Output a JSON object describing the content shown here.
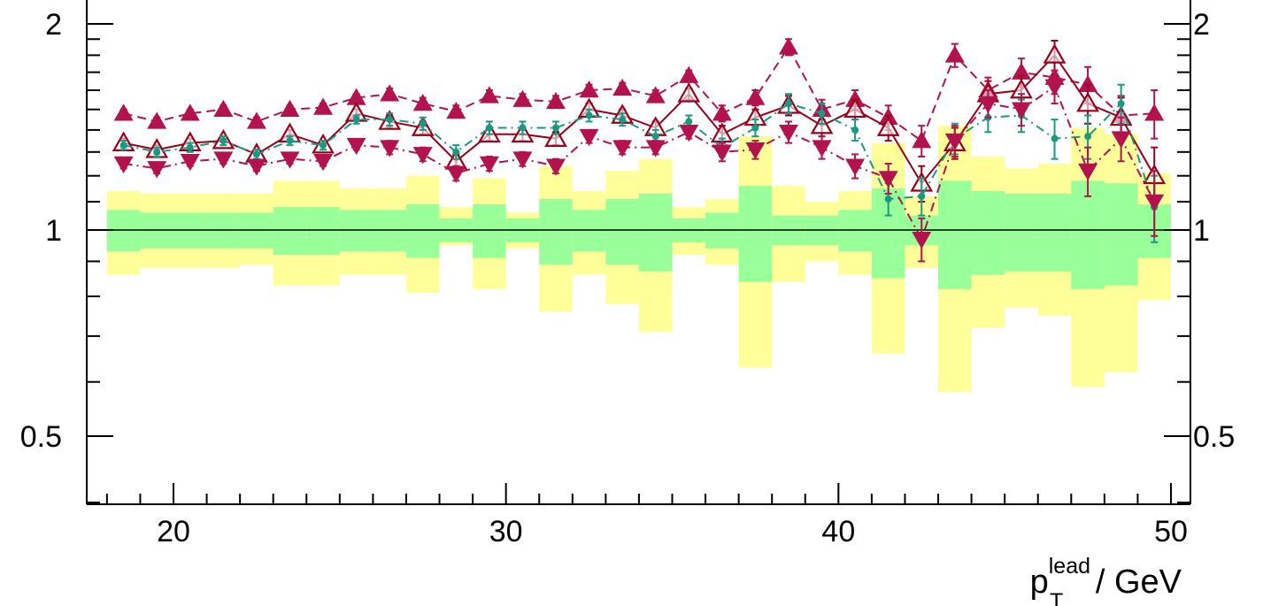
{
  "chart_data": {
    "type": "line",
    "xlabel": {
      "main": "p",
      "sup": "lead",
      "sub": "T",
      "unit": " / GeV"
    },
    "x_ticks": [
      20,
      30,
      40,
      50
    ],
    "x_tick_labels": [
      "20",
      "30",
      "40",
      "50"
    ],
    "y_ticks": [
      0.5,
      1,
      2
    ],
    "y_tick_labels": [
      "0.5",
      "1",
      "2"
    ],
    "xlim": [
      17.5,
      50.6
    ],
    "ylim": [
      0.35,
      2.3
    ],
    "y_scale": "log",
    "reference_line": 1,
    "colors": {
      "green_band": "#99ff99",
      "yellow_band": "#ffff99",
      "dark_red": "#99001a",
      "magenta": "#b3134d",
      "teal": "#1a9980",
      "reference": "#000000"
    },
    "bins": [
      {
        "lo": 18,
        "hi": 19,
        "inner": [
          0.93,
          1.07
        ],
        "outer": [
          0.86,
          1.14
        ]
      },
      {
        "lo": 19,
        "hi": 20,
        "inner": [
          0.94,
          1.06
        ],
        "outer": [
          0.88,
          1.13
        ]
      },
      {
        "lo": 20,
        "hi": 21,
        "inner": [
          0.94,
          1.06
        ],
        "outer": [
          0.88,
          1.13
        ]
      },
      {
        "lo": 21,
        "hi": 22,
        "inner": [
          0.94,
          1.06
        ],
        "outer": [
          0.88,
          1.13
        ]
      },
      {
        "lo": 22,
        "hi": 23,
        "inner": [
          0.94,
          1.06
        ],
        "outer": [
          0.89,
          1.13
        ]
      },
      {
        "lo": 23,
        "hi": 24,
        "inner": [
          0.92,
          1.08
        ],
        "outer": [
          0.83,
          1.18
        ]
      },
      {
        "lo": 24,
        "hi": 25,
        "inner": [
          0.92,
          1.08
        ],
        "outer": [
          0.83,
          1.18
        ]
      },
      {
        "lo": 25,
        "hi": 26,
        "inner": [
          0.93,
          1.07
        ],
        "outer": [
          0.86,
          1.15
        ]
      },
      {
        "lo": 26,
        "hi": 27,
        "inner": [
          0.93,
          1.07
        ],
        "outer": [
          0.86,
          1.15
        ]
      },
      {
        "lo": 27,
        "hi": 28,
        "inner": [
          0.91,
          1.09
        ],
        "outer": [
          0.81,
          1.2
        ]
      },
      {
        "lo": 28,
        "hi": 29,
        "inner": [
          0.96,
          1.04
        ],
        "outer": [
          0.95,
          1.08
        ]
      },
      {
        "lo": 29,
        "hi": 30,
        "inner": [
          0.91,
          1.09
        ],
        "outer": [
          0.82,
          1.19
        ]
      },
      {
        "lo": 30,
        "hi": 31,
        "inner": [
          0.96,
          1.04
        ],
        "outer": [
          0.94,
          1.06
        ]
      },
      {
        "lo": 31,
        "hi": 32,
        "inner": [
          0.89,
          1.11
        ],
        "outer": [
          0.76,
          1.24
        ]
      },
      {
        "lo": 32,
        "hi": 33,
        "inner": [
          0.93,
          1.07
        ],
        "outer": [
          0.86,
          1.14
        ]
      },
      {
        "lo": 33,
        "hi": 34,
        "inner": [
          0.89,
          1.11
        ],
        "outer": [
          0.78,
          1.22
        ]
      },
      {
        "lo": 34,
        "hi": 35,
        "inner": [
          0.87,
          1.13
        ],
        "outer": [
          0.71,
          1.27
        ]
      },
      {
        "lo": 35,
        "hi": 36,
        "inner": [
          0.96,
          1.04
        ],
        "outer": [
          0.92,
          1.08
        ]
      },
      {
        "lo": 36,
        "hi": 37,
        "inner": [
          0.94,
          1.06
        ],
        "outer": [
          0.89,
          1.11
        ]
      },
      {
        "lo": 37,
        "hi": 38,
        "inner": [
          0.84,
          1.16
        ],
        "outer": [
          0.63,
          1.37
        ]
      },
      {
        "lo": 38,
        "hi": 39,
        "inner": [
          0.95,
          1.05
        ],
        "outer": [
          0.84,
          1.16
        ]
      },
      {
        "lo": 39,
        "hi": 40,
        "inner": [
          0.95,
          1.05
        ],
        "outer": [
          0.9,
          1.1
        ]
      },
      {
        "lo": 40,
        "hi": 41,
        "inner": [
          0.93,
          1.07
        ],
        "outer": [
          0.86,
          1.14
        ]
      },
      {
        "lo": 41,
        "hi": 42,
        "inner": [
          0.85,
          1.15
        ],
        "outer": [
          0.66,
          1.34
        ]
      },
      {
        "lo": 42,
        "hi": 43,
        "inner": [
          0.95,
          1.05
        ],
        "outer": [
          0.88,
          1.12
        ]
      },
      {
        "lo": 43,
        "hi": 44,
        "inner": [
          0.82,
          1.18
        ],
        "outer": [
          0.58,
          1.42
        ]
      },
      {
        "lo": 44,
        "hi": 45,
        "inner": [
          0.86,
          1.14
        ],
        "outer": [
          0.72,
          1.28
        ]
      },
      {
        "lo": 45,
        "hi": 46,
        "inner": [
          0.87,
          1.13
        ],
        "outer": [
          0.77,
          1.23
        ]
      },
      {
        "lo": 46,
        "hi": 47,
        "inner": [
          0.87,
          1.13
        ],
        "outer": [
          0.75,
          1.25
        ]
      },
      {
        "lo": 47,
        "hi": 48,
        "inner": [
          0.82,
          1.18
        ],
        "outer": [
          0.59,
          1.41
        ]
      },
      {
        "lo": 48,
        "hi": 49,
        "inner": [
          0.83,
          1.17
        ],
        "outer": [
          0.62,
          1.38
        ]
      },
      {
        "lo": 49,
        "hi": 50,
        "inner": [
          0.91,
          1.09
        ],
        "outer": [
          0.79,
          1.21
        ]
      }
    ],
    "series": [
      {
        "marker": "triangle-up-filled",
        "line": "dashed",
        "color": "magenta",
        "x": [
          18.5,
          19.5,
          20.5,
          21.5,
          22.5,
          23.5,
          24.5,
          25.5,
          26.5,
          27.5,
          28.5,
          29.5,
          30.5,
          31.5,
          32.5,
          33.5,
          34.5,
          35.5,
          36.5,
          37.5,
          38.5,
          39.5,
          40.5,
          41.5,
          42.5,
          43.5,
          44.5,
          45.5,
          46.5,
          47.5,
          48.5,
          49.5
        ],
        "y": [
          1.48,
          1.44,
          1.48,
          1.5,
          1.44,
          1.5,
          1.51,
          1.56,
          1.58,
          1.53,
          1.49,
          1.57,
          1.55,
          1.54,
          1.6,
          1.61,
          1.57,
          1.68,
          1.48,
          1.56,
          1.85,
          1.5,
          1.55,
          1.46,
          1.35,
          1.8,
          1.6,
          1.7,
          1.67,
          1.63,
          1.47,
          1.48
        ],
        "err": [
          0.02,
          0.02,
          0.02,
          0.02,
          0.02,
          0.02,
          0.02,
          0.02,
          0.03,
          0.03,
          0.03,
          0.03,
          0.03,
          0.03,
          0.03,
          0.03,
          0.03,
          0.03,
          0.04,
          0.04,
          0.05,
          0.05,
          0.05,
          0.06,
          0.07,
          0.07,
          0.07,
          0.08,
          0.09,
          0.1,
          0.1,
          0.12
        ]
      },
      {
        "marker": "triangle-up-open",
        "line": "solid",
        "color": "dark_red",
        "x": [
          18.5,
          19.5,
          20.5,
          21.5,
          22.5,
          23.5,
          24.5,
          25.5,
          26.5,
          27.5,
          28.5,
          29.5,
          30.5,
          31.5,
          32.5,
          33.5,
          34.5,
          35.5,
          36.5,
          37.5,
          38.5,
          39.5,
          40.5,
          41.5,
          42.5,
          43.5,
          44.5,
          45.5,
          46.5,
          47.5,
          48.5,
          49.5
        ],
        "y": [
          1.34,
          1.31,
          1.34,
          1.35,
          1.29,
          1.38,
          1.33,
          1.48,
          1.44,
          1.41,
          1.26,
          1.38,
          1.38,
          1.36,
          1.5,
          1.47,
          1.41,
          1.58,
          1.38,
          1.46,
          1.52,
          1.42,
          1.5,
          1.41,
          1.17,
          1.34,
          1.58,
          1.6,
          1.8,
          1.53,
          1.46,
          1.2
        ],
        "err": [
          0.02,
          0.02,
          0.02,
          0.02,
          0.02,
          0.02,
          0.02,
          0.02,
          0.03,
          0.03,
          0.03,
          0.03,
          0.03,
          0.03,
          0.03,
          0.03,
          0.03,
          0.03,
          0.04,
          0.04,
          0.05,
          0.05,
          0.05,
          0.06,
          0.07,
          0.07,
          0.07,
          0.08,
          0.09,
          0.1,
          0.1,
          0.12
        ]
      },
      {
        "marker": "circle-filled",
        "line": "dash-dot",
        "color": "teal",
        "x": [
          18.5,
          19.5,
          20.5,
          21.5,
          22.5,
          23.5,
          24.5,
          25.5,
          26.5,
          27.5,
          28.5,
          29.5,
          30.5,
          31.5,
          32.5,
          33.5,
          34.5,
          35.5,
          36.5,
          37.5,
          38.5,
          39.5,
          40.5,
          41.5,
          42.5,
          43.5,
          44.5,
          45.5,
          46.5,
          47.5,
          48.5,
          49.5
        ],
        "y": [
          1.33,
          1.3,
          1.32,
          1.35,
          1.29,
          1.35,
          1.33,
          1.45,
          1.45,
          1.43,
          1.3,
          1.41,
          1.41,
          1.41,
          1.47,
          1.45,
          1.37,
          1.44,
          1.32,
          1.41,
          1.53,
          1.48,
          1.4,
          1.11,
          1.12,
          1.36,
          1.46,
          1.47,
          1.36,
          1.37,
          1.53,
          1.08
        ],
        "err": [
          0.02,
          0.02,
          0.02,
          0.02,
          0.02,
          0.02,
          0.02,
          0.02,
          0.03,
          0.03,
          0.03,
          0.03,
          0.03,
          0.03,
          0.03,
          0.03,
          0.03,
          0.03,
          0.04,
          0.04,
          0.05,
          0.05,
          0.05,
          0.06,
          0.07,
          0.07,
          0.07,
          0.08,
          0.09,
          0.1,
          0.1,
          0.12
        ]
      },
      {
        "marker": "triangle-down-filled",
        "line": "dash-dot",
        "color": "magenta",
        "x": [
          18.5,
          19.5,
          20.5,
          21.5,
          22.5,
          23.5,
          24.5,
          25.5,
          26.5,
          27.5,
          28.5,
          29.5,
          30.5,
          31.5,
          32.5,
          33.5,
          34.5,
          35.5,
          36.5,
          37.5,
          38.5,
          39.5,
          40.5,
          41.5,
          42.5,
          43.5,
          44.5,
          45.5,
          46.5,
          47.5,
          48.5,
          49.5
        ],
        "y": [
          1.25,
          1.23,
          1.26,
          1.27,
          1.24,
          1.27,
          1.26,
          1.33,
          1.32,
          1.29,
          1.21,
          1.25,
          1.27,
          1.24,
          1.37,
          1.32,
          1.32,
          1.39,
          1.3,
          1.31,
          1.39,
          1.32,
          1.24,
          1.19,
          0.97,
          1.35,
          1.53,
          1.5,
          1.62,
          1.22,
          1.36,
          1.1
        ],
        "err": [
          0.02,
          0.02,
          0.02,
          0.02,
          0.02,
          0.02,
          0.02,
          0.02,
          0.03,
          0.03,
          0.03,
          0.03,
          0.03,
          0.03,
          0.03,
          0.03,
          0.03,
          0.03,
          0.04,
          0.04,
          0.05,
          0.05,
          0.05,
          0.06,
          0.07,
          0.07,
          0.07,
          0.08,
          0.09,
          0.1,
          0.1,
          0.12
        ]
      }
    ]
  }
}
